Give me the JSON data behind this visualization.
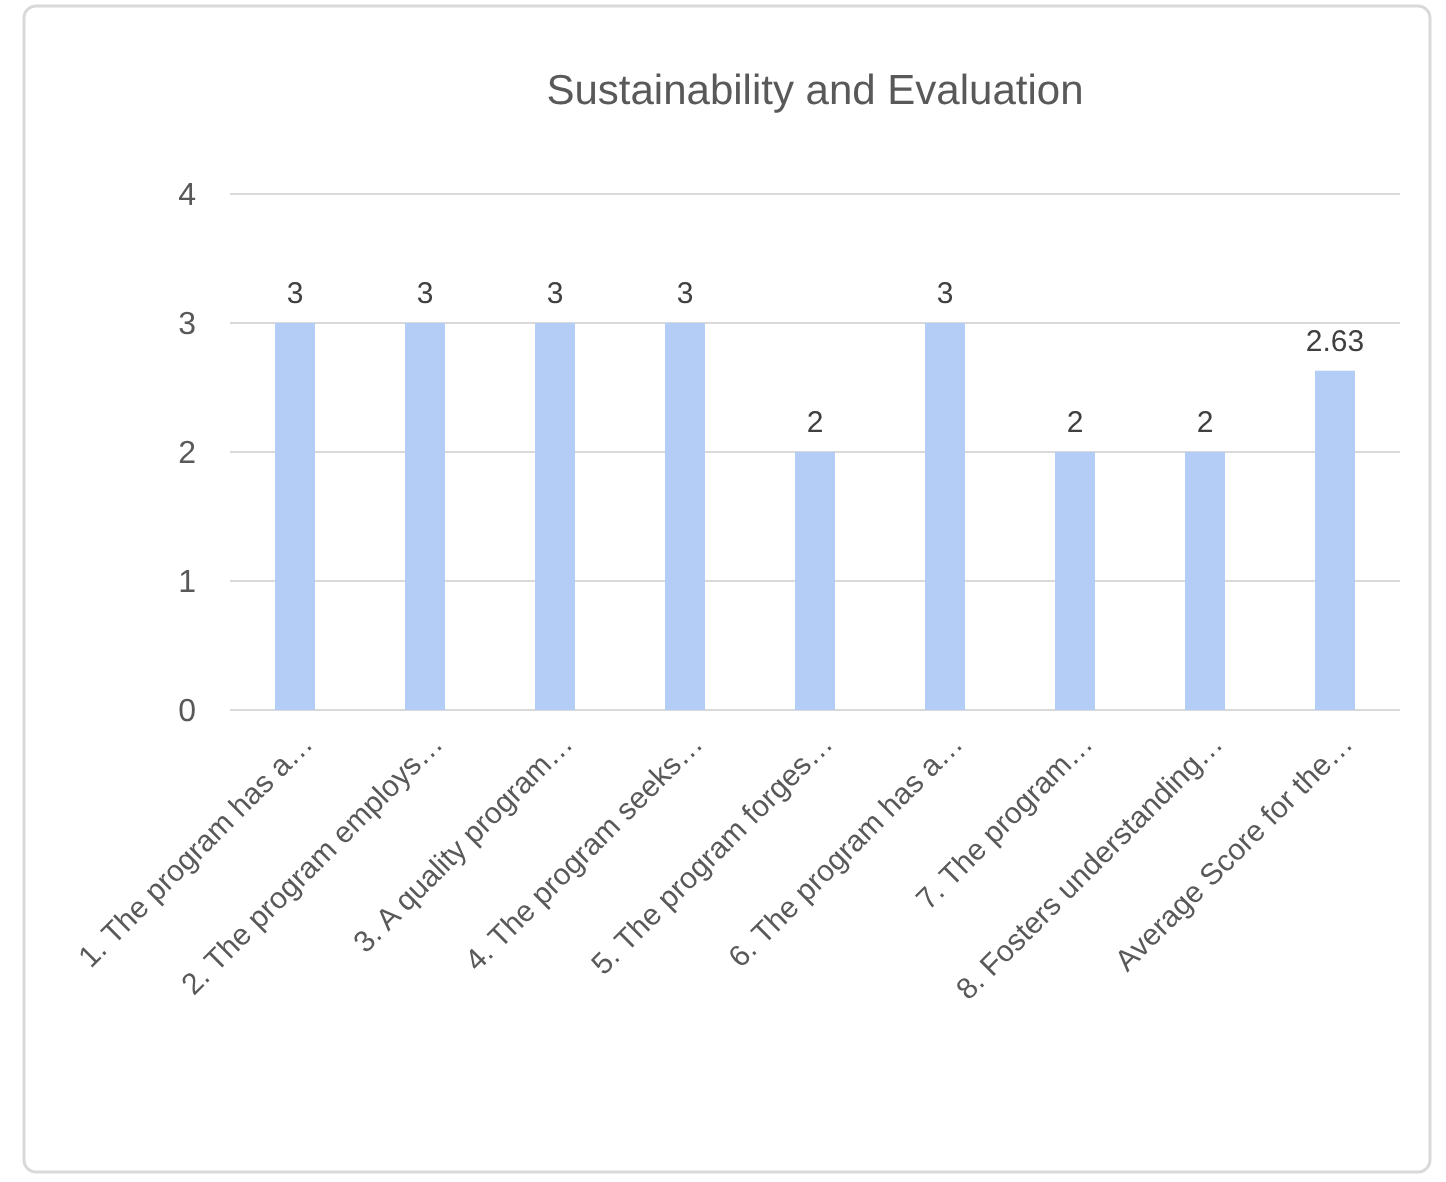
{
  "chart_data": {
    "type": "bar",
    "title": "Sustainability and Evaluation",
    "categories": [
      "1. The program has a…",
      "2. The program employs…",
      "3. A quality program…",
      "4. The program seeks…",
      "5. The program forges…",
      "6. The program has a…",
      "7. The program…",
      "8. Fosters understanding…",
      "Average Score for the…"
    ],
    "values": [
      3,
      3,
      3,
      3,
      2,
      3,
      2,
      2,
      2.63
    ],
    "color": "#b4cdf7",
    "ylim": [
      0,
      4
    ],
    "yticks": [
      0,
      1,
      2,
      3,
      4
    ],
    "grid": "y",
    "data_labels": true
  }
}
